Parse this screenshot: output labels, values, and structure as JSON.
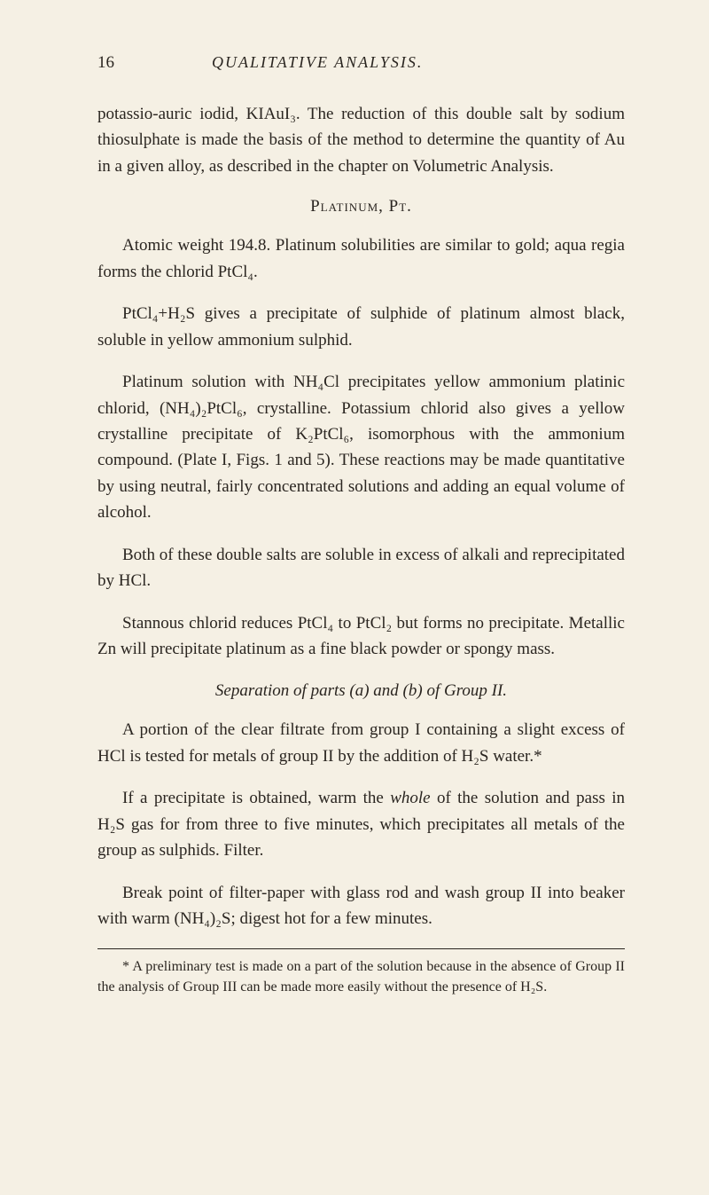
{
  "page": {
    "number": "16",
    "title": "QUALITATIVE ANALYSIS."
  },
  "paragraphs": {
    "p1": "potassio-auric iodid, KIAuI₃. The reduction of this double salt by sodium thiosulphate is made the basis of the method to determine the quantity of Au in a given alloy, as described in the chapter on Volumetric Analysis.",
    "heading1": "Platinum, Pt.",
    "p2": "Atomic weight 194.8. Platinum solubilities are similar to gold; aqua regia forms the chlorid PtCl₄.",
    "p3": "PtCl₄+H₂S gives a precipitate of sulphide of platinum almost black, soluble in yellow ammonium sulphid.",
    "p4": "Platinum solution with NH₄Cl precipitates yellow ammonium platinic chlorid, (NH₄)₂PtCl₆, crystalline. Potassium chlorid also gives a yellow crystalline precipitate of K₂PtCl₆, isomorphous with the ammonium compound. (Plate I, Figs. 1 and 5). These reactions may be made quantitative by using neutral, fairly concentrated solutions and adding an equal volume of alcohol.",
    "p5": "Both of these double salts are soluble in excess of alkali and reprecipitated by HCl.",
    "p6": "Stannous chlorid reduces PtCl₄ to PtCl₂ but forms no precipitate. Metallic Zn will precipitate platinum as a fine black powder or spongy mass.",
    "heading2": "Separation of parts (a) and (b) of Group II.",
    "p7_pre": "A portion of the clear filtrate from group I containing a slight excess of HCl is tested for metals of group II by the addition of H₂S water.*",
    "p8_pre": "If a precipitate is obtained, warm the ",
    "p8_italic": "whole",
    "p8_post": " of the solution and pass in H₂S gas for from three to five minutes, which precipitates all metals of the group as sulphids. Filter.",
    "p9": "Break point of filter-paper with glass rod and wash group II into beaker with warm (NH₄)₂S; digest hot for a few minutes."
  },
  "footnote": {
    "text": "* A preliminary test is made on a part of the solution because in the absence of Group II the analysis of Group III can be made more easily without the presence of H₂S."
  },
  "colors": {
    "background": "#f5f0e4",
    "text": "#2a2520"
  }
}
